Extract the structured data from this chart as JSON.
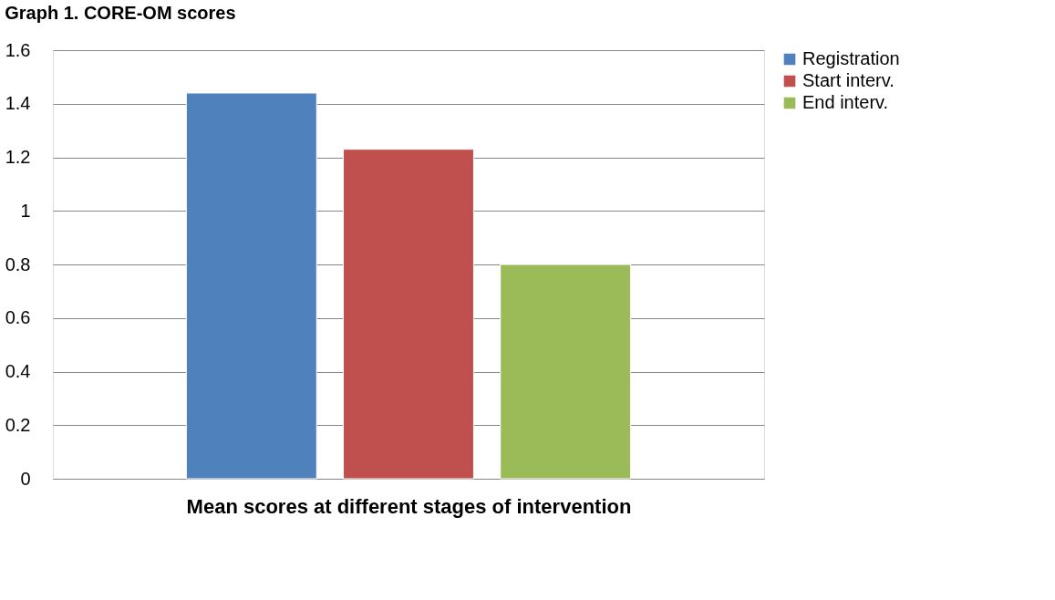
{
  "chart_data": {
    "type": "bar",
    "title": "Graph 1. CORE-OM scores",
    "xlabel": "Mean scores at different stages of intervention",
    "categories": [
      null
    ],
    "series": [
      {
        "name": "Registration",
        "color": "#4f81bd",
        "values": [
          1.44
        ]
      },
      {
        "name": "Start interv.",
        "color": "#c0504d",
        "values": [
          1.23
        ]
      },
      {
        "name": "End interv.",
        "color": "#9bbb59",
        "values": [
          0.8
        ]
      }
    ],
    "ylim": [
      0,
      1.6
    ],
    "yticks": [
      0,
      0.2,
      0.4,
      0.6,
      0.8,
      1,
      1.2,
      1.4,
      1.6
    ],
    "grid": "y",
    "legend": "right",
    "tick_labels": "y"
  }
}
